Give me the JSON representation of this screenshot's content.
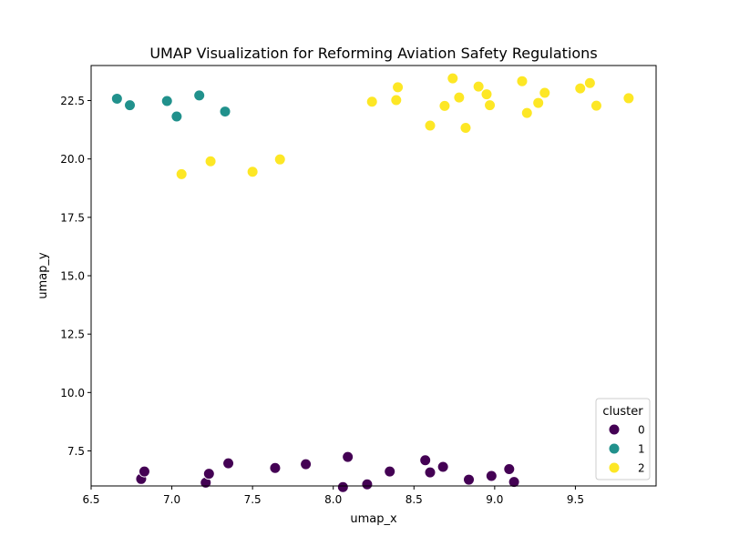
{
  "chart_data": {
    "type": "scatter",
    "title": "UMAP Visualization for Reforming Aviation Safety Regulations",
    "xlabel": "umap_x",
    "ylabel": "umap_y",
    "xlim": [
      6.5,
      10.0
    ],
    "ylim": [
      6.0,
      24.0
    ],
    "xticks": [
      "6.5",
      "7.0",
      "7.5",
      "8.0",
      "8.5",
      "9.0",
      "9.5"
    ],
    "yticks": [
      "7.5",
      "10.0",
      "12.5",
      "15.0",
      "17.5",
      "20.0",
      "22.5"
    ],
    "grid": false,
    "legend": {
      "title": "cluster",
      "placement": "bottom-right"
    },
    "series": [
      {
        "name": "0",
        "color": "#440154",
        "points": [
          [
            6.81,
            6.3
          ],
          [
            6.83,
            6.62
          ],
          [
            7.21,
            6.14
          ],
          [
            7.23,
            6.52
          ],
          [
            7.35,
            6.97
          ],
          [
            7.64,
            6.77
          ],
          [
            7.83,
            6.93
          ],
          [
            8.06,
            5.95
          ],
          [
            8.09,
            7.24
          ],
          [
            8.21,
            6.07
          ],
          [
            8.35,
            6.62
          ],
          [
            8.57,
            7.1
          ],
          [
            8.6,
            6.58
          ],
          [
            8.68,
            6.82
          ],
          [
            8.84,
            6.27
          ],
          [
            8.98,
            6.43
          ],
          [
            9.09,
            6.72
          ],
          [
            9.12,
            6.17
          ]
        ]
      },
      {
        "name": "1",
        "color": "#21918c",
        "points": [
          [
            6.66,
            22.58
          ],
          [
            6.74,
            22.3
          ],
          [
            6.97,
            22.48
          ],
          [
            7.03,
            21.82
          ],
          [
            7.17,
            22.72
          ],
          [
            7.33,
            22.03
          ]
        ]
      },
      {
        "name": "2",
        "color": "#fde725",
        "points": [
          [
            7.06,
            19.35
          ],
          [
            7.24,
            19.9
          ],
          [
            7.5,
            19.45
          ],
          [
            7.67,
            19.98
          ],
          [
            8.24,
            22.45
          ],
          [
            8.39,
            22.52
          ],
          [
            8.4,
            23.07
          ],
          [
            8.6,
            21.43
          ],
          [
            8.69,
            22.27
          ],
          [
            8.74,
            23.45
          ],
          [
            8.78,
            22.63
          ],
          [
            8.82,
            21.33
          ],
          [
            8.9,
            23.1
          ],
          [
            8.95,
            22.77
          ],
          [
            8.97,
            22.3
          ],
          [
            9.17,
            23.33
          ],
          [
            9.2,
            21.97
          ],
          [
            9.27,
            22.4
          ],
          [
            9.31,
            22.83
          ],
          [
            9.53,
            23.02
          ],
          [
            9.59,
            23.25
          ],
          [
            9.63,
            22.28
          ],
          [
            9.83,
            22.6
          ]
        ]
      }
    ]
  }
}
